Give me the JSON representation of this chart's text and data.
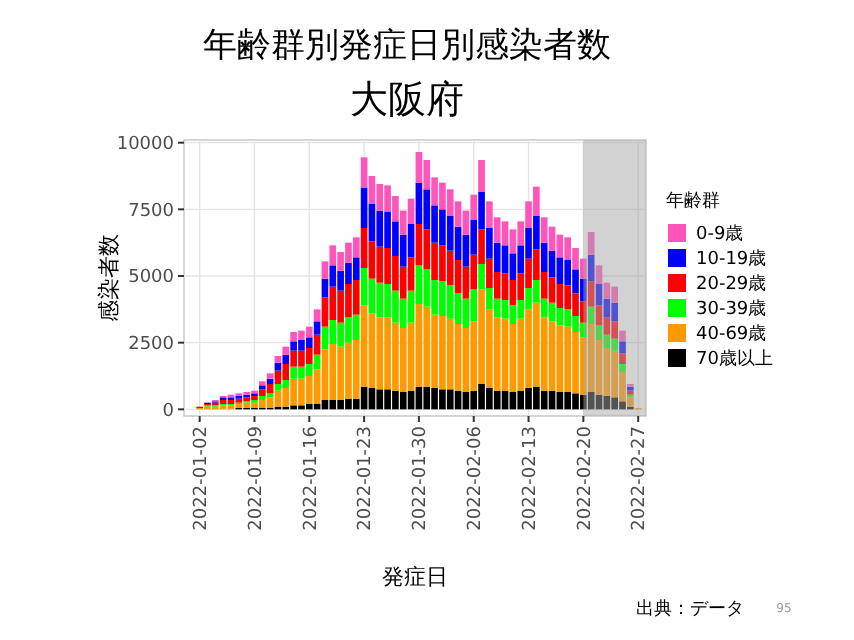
{
  "chart_data": {
    "type": "bar",
    "title": "年齢群別発症日別感染者数",
    "subtitle": "大阪府",
    "xlabel": "発症日",
    "ylabel": "感染者数",
    "legend_title": "年齢群",
    "stacked": true,
    "grid": true,
    "legend": "right",
    "annotations": [
      "出典：データ",
      "95"
    ],
    "x": [
      "2022-01-02",
      "2022-01-03",
      "2022-01-04",
      "2022-01-05",
      "2022-01-06",
      "2022-01-07",
      "2022-01-08",
      "2022-01-09",
      "2022-01-10",
      "2022-01-11",
      "2022-01-12",
      "2022-01-13",
      "2022-01-14",
      "2022-01-15",
      "2022-01-16",
      "2022-01-17",
      "2022-01-18",
      "2022-01-19",
      "2022-01-20",
      "2022-01-21",
      "2022-01-22",
      "2022-01-23",
      "2022-01-24",
      "2022-01-25",
      "2022-01-26",
      "2022-01-27",
      "2022-01-28",
      "2022-01-29",
      "2022-01-30",
      "2022-01-31",
      "2022-02-01",
      "2022-02-02",
      "2022-02-03",
      "2022-02-04",
      "2022-02-05",
      "2022-02-06",
      "2022-02-07",
      "2022-02-08",
      "2022-02-09",
      "2022-02-10",
      "2022-02-11",
      "2022-02-12",
      "2022-02-13",
      "2022-02-14",
      "2022-02-15",
      "2022-02-16",
      "2022-02-17",
      "2022-02-18",
      "2022-02-19",
      "2022-02-20",
      "2022-02-21",
      "2022-02-22",
      "2022-02-23",
      "2022-02-24",
      "2022-02-25",
      "2022-02-26",
      "2022-02-27"
    ],
    "xlim": [
      "2021-12-31",
      "2022-02-28"
    ],
    "xticks": [
      {
        "value": "2022-01-02",
        "label": "2022-01-02"
      },
      {
        "value": "2022-01-09",
        "label": "2022-01-09"
      },
      {
        "value": "2022-01-16",
        "label": "2022-01-16"
      },
      {
        "value": "2022-01-23",
        "label": "2022-01-23"
      },
      {
        "value": "2022-01-30",
        "label": "2022-01-30"
      },
      {
        "value": "2022-02-06",
        "label": "2022-02-06"
      },
      {
        "value": "2022-02-13",
        "label": "2022-02-13"
      },
      {
        "value": "2022-02-20",
        "label": "2022-02-20"
      },
      {
        "value": "2022-02-27",
        "label": "2022-02-27"
      }
    ],
    "ylim": [
      -250,
      10100
    ],
    "yticks": [
      0,
      2500,
      5000,
      7500,
      10000
    ],
    "bands": [
      {
        "axis": "x",
        "from": "2022-02-20",
        "to": "2022-02-28",
        "color": "#a6a6a6"
      }
    ],
    "series": [
      {
        "name": "70歳以上",
        "color": "#000000",
        "values": [
          0,
          0,
          0,
          0,
          0,
          50,
          50,
          50,
          50,
          50,
          100,
          100,
          150,
          150,
          200,
          200,
          350,
          350,
          350,
          400,
          400,
          850,
          800,
          750,
          750,
          700,
          650,
          700,
          850,
          850,
          800,
          750,
          750,
          700,
          650,
          700,
          950,
          800,
          700,
          700,
          650,
          700,
          800,
          850,
          700,
          700,
          650,
          650,
          600,
          550,
          650,
          550,
          500,
          450,
          300,
          100,
          0
        ]
      },
      {
        "name": "40-69歳",
        "color": "#ff9900",
        "values": [
          50,
          100,
          100,
          150,
          150,
          150,
          200,
          200,
          300,
          400,
          600,
          700,
          1000,
          1000,
          1050,
          1300,
          1900,
          2100,
          2000,
          2100,
          2200,
          3050,
          2800,
          2700,
          2700,
          2550,
          2400,
          2550,
          3100,
          3000,
          2750,
          2750,
          2650,
          2500,
          2400,
          2600,
          3550,
          2950,
          2750,
          2700,
          2550,
          2700,
          2950,
          3150,
          2750,
          2600,
          2500,
          2450,
          2300,
          2150,
          2550,
          2050,
          1800,
          1750,
          1100,
          350,
          50
        ]
      },
      {
        "name": "30-39歳",
        "color": "#00ff00",
        "values": [
          0,
          50,
          50,
          50,
          50,
          50,
          50,
          100,
          150,
          150,
          250,
          300,
          450,
          450,
          450,
          550,
          850,
          900,
          900,
          950,
          950,
          1400,
          1300,
          1300,
          1250,
          1200,
          1100,
          1200,
          1450,
          1400,
          1300,
          1300,
          1250,
          1150,
          1100,
          1200,
          950,
          800,
          700,
          700,
          700,
          700,
          800,
          850,
          700,
          700,
          650,
          650,
          600,
          550,
          650,
          550,
          500,
          450,
          300,
          100,
          0
        ]
      },
      {
        "name": "20-29歳",
        "color": "#ff0000",
        "values": [
          50,
          50,
          100,
          150,
          150,
          150,
          150,
          150,
          250,
          350,
          500,
          600,
          600,
          600,
          600,
          750,
          1100,
          1250,
          1200,
          1250,
          1300,
          1500,
          1400,
          1350,
          1350,
          1300,
          1200,
          1250,
          1550,
          1500,
          1400,
          1350,
          1300,
          1250,
          1200,
          1300,
          1300,
          1100,
          1000,
          1000,
          950,
          1000,
          1100,
          1150,
          1000,
          950,
          900,
          900,
          850,
          800,
          950,
          750,
          650,
          650,
          400,
          150,
          0
        ]
      },
      {
        "name": "10-19歳",
        "color": "#0000ff",
        "values": [
          0,
          50,
          50,
          100,
          100,
          100,
          100,
          100,
          150,
          200,
          300,
          350,
          350,
          400,
          400,
          500,
          700,
          800,
          750,
          800,
          850,
          1500,
          1400,
          1350,
          1350,
          1300,
          1200,
          1250,
          1550,
          1500,
          1400,
          1350,
          1300,
          1250,
          1200,
          1300,
          1400,
          1150,
          1100,
          1050,
          1000,
          1050,
          1150,
          1250,
          1100,
          1000,
          1000,
          950,
          900,
          850,
          1000,
          800,
          700,
          700,
          450,
          150,
          0
        ]
      },
      {
        "name": "0-9歳",
        "color": "#ff55bb",
        "values": [
          0,
          0,
          50,
          50,
          100,
          100,
          100,
          100,
          150,
          200,
          250,
          300,
          350,
          350,
          400,
          450,
          650,
          750,
          700,
          750,
          750,
          1150,
          1050,
          1000,
          1000,
          950,
          900,
          950,
          1150,
          1100,
          1050,
          1000,
          1000,
          950,
          900,
          950,
          1200,
          1000,
          950,
          900,
          900,
          900,
          1000,
          1100,
          950,
          900,
          850,
          850,
          800,
          750,
          850,
          700,
          600,
          600,
          400,
          100,
          0
        ]
      }
    ]
  }
}
